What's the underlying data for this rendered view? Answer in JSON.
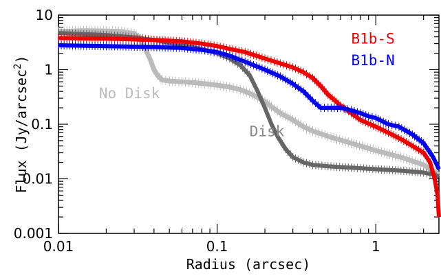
{
  "chart_data": {
    "type": "line",
    "title": "",
    "xlabel": "Radius (arcsec)",
    "ylabel_base": "Flux (Jy/arcsec",
    "ylabel_sup": "2",
    "ylabel_end": ")",
    "x_scale": "log",
    "y_scale": "log",
    "xlim": [
      0.01,
      2.5
    ],
    "ylim": [
      0.001,
      10
    ],
    "x_ticks": [
      {
        "value": 0.01,
        "label": "0.01"
      },
      {
        "value": 0.1,
        "label": "0.1"
      },
      {
        "value": 1,
        "label": "1"
      }
    ],
    "y_ticks": [
      {
        "value": 0.001,
        "label": "0.001"
      },
      {
        "value": 0.01,
        "label": "0.01"
      },
      {
        "value": 0.1,
        "label": "0.1"
      },
      {
        "value": 1,
        "label": "1"
      },
      {
        "value": 10,
        "label": "10"
      }
    ],
    "grid": false,
    "series": [
      {
        "name": "No Disk",
        "color": "#bbbbbb",
        "label_color": "#bbbbbb",
        "x": [
          0.01,
          0.015,
          0.02,
          0.025,
          0.03,
          0.033,
          0.036,
          0.038,
          0.04,
          0.042,
          0.045,
          0.05,
          0.06,
          0.07,
          0.08,
          0.1,
          0.12,
          0.14,
          0.16,
          0.18,
          0.2,
          0.22,
          0.25,
          0.3,
          0.35,
          0.4,
          0.5,
          0.7,
          1.0,
          1.5,
          2.0,
          2.3,
          2.5
        ],
        "y": [
          5.0,
          5.2,
          5.1,
          5.0,
          4.6,
          3.6,
          2.1,
          1.5,
          1.0,
          0.8,
          0.65,
          0.62,
          0.6,
          0.58,
          0.56,
          0.52,
          0.48,
          0.43,
          0.37,
          0.31,
          0.26,
          0.21,
          0.16,
          0.12,
          0.09,
          0.075,
          0.06,
          0.045,
          0.033,
          0.024,
          0.018,
          0.014,
          0.012
        ]
      },
      {
        "name": "Disk",
        "color": "#666666",
        "label_color": "#888888",
        "x": [
          0.01,
          0.02,
          0.03,
          0.04,
          0.05,
          0.06,
          0.08,
          0.1,
          0.12,
          0.14,
          0.16,
          0.18,
          0.2,
          0.22,
          0.24,
          0.27,
          0.3,
          0.35,
          0.4,
          0.5,
          0.7,
          1.0,
          1.5,
          2.0,
          2.3,
          2.5
        ],
        "y": [
          4.7,
          4.3,
          3.9,
          3.5,
          3.1,
          2.8,
          2.4,
          2.0,
          1.6,
          1.2,
          0.8,
          0.4,
          0.2,
          0.1,
          0.06,
          0.035,
          0.025,
          0.02,
          0.018,
          0.017,
          0.016,
          0.015,
          0.014,
          0.013,
          0.012,
          0.011
        ]
      },
      {
        "name": "B1b-S",
        "color": "#ee0000",
        "label_color": "#ee0000",
        "x": [
          0.01,
          0.02,
          0.04,
          0.06,
          0.08,
          0.1,
          0.12,
          0.15,
          0.2,
          0.25,
          0.3,
          0.35,
          0.4,
          0.45,
          0.5,
          0.6,
          0.7,
          0.8,
          1.0,
          1.2,
          1.5,
          2.0,
          2.2,
          2.35,
          2.45,
          2.5
        ],
        "y": [
          3.8,
          3.7,
          3.5,
          3.3,
          3.0,
          2.7,
          2.4,
          2.1,
          1.6,
          1.3,
          1.1,
          0.9,
          0.7,
          0.5,
          0.35,
          0.22,
          0.16,
          0.12,
          0.09,
          0.07,
          0.05,
          0.03,
          0.02,
          0.01,
          0.005,
          0.002
        ]
      },
      {
        "name": "B1b-N",
        "color": "#0000ee",
        "label_color": "#0000ee",
        "x": [
          0.01,
          0.02,
          0.04,
          0.06,
          0.08,
          0.1,
          0.12,
          0.15,
          0.2,
          0.25,
          0.3,
          0.35,
          0.4,
          0.45,
          0.5,
          0.6,
          0.7,
          0.8,
          0.9,
          1.0,
          1.2,
          1.4,
          1.7,
          2.0,
          2.3,
          2.5
        ],
        "y": [
          2.8,
          2.7,
          2.6,
          2.5,
          2.3,
          2.1,
          1.8,
          1.4,
          1.0,
          0.75,
          0.55,
          0.4,
          0.27,
          0.2,
          0.2,
          0.2,
          0.18,
          0.16,
          0.14,
          0.13,
          0.1,
          0.09,
          0.065,
          0.045,
          0.025,
          0.015
        ]
      }
    ],
    "annotations": [
      {
        "text": "B1b-S",
        "color": "#ee0000",
        "x": 0.7,
        "y": 3.0
      },
      {
        "text": "B1b-N",
        "color": "#0000ee",
        "x": 0.7,
        "y": 1.2
      },
      {
        "text": "No Disk",
        "color": "#bbbbbb",
        "x": 0.018,
        "y": 0.3
      },
      {
        "text": "Disk",
        "color": "#888888",
        "x": 0.16,
        "y": 0.06
      }
    ]
  }
}
